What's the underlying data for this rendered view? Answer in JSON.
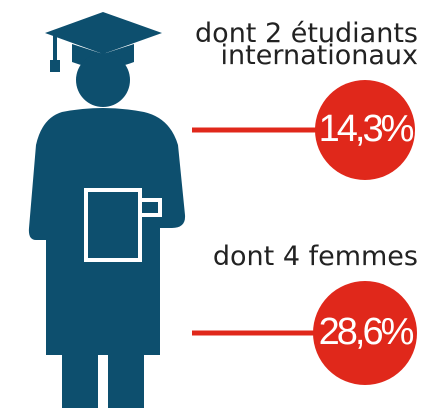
{
  "items": [
    {
      "label_lines": [
        "dont 2 étudiants",
        "internationaux"
      ],
      "value": "14,3%"
    },
    {
      "label_lines": [
        "dont 4 femmes"
      ],
      "value": "28,6%"
    }
  ]
}
